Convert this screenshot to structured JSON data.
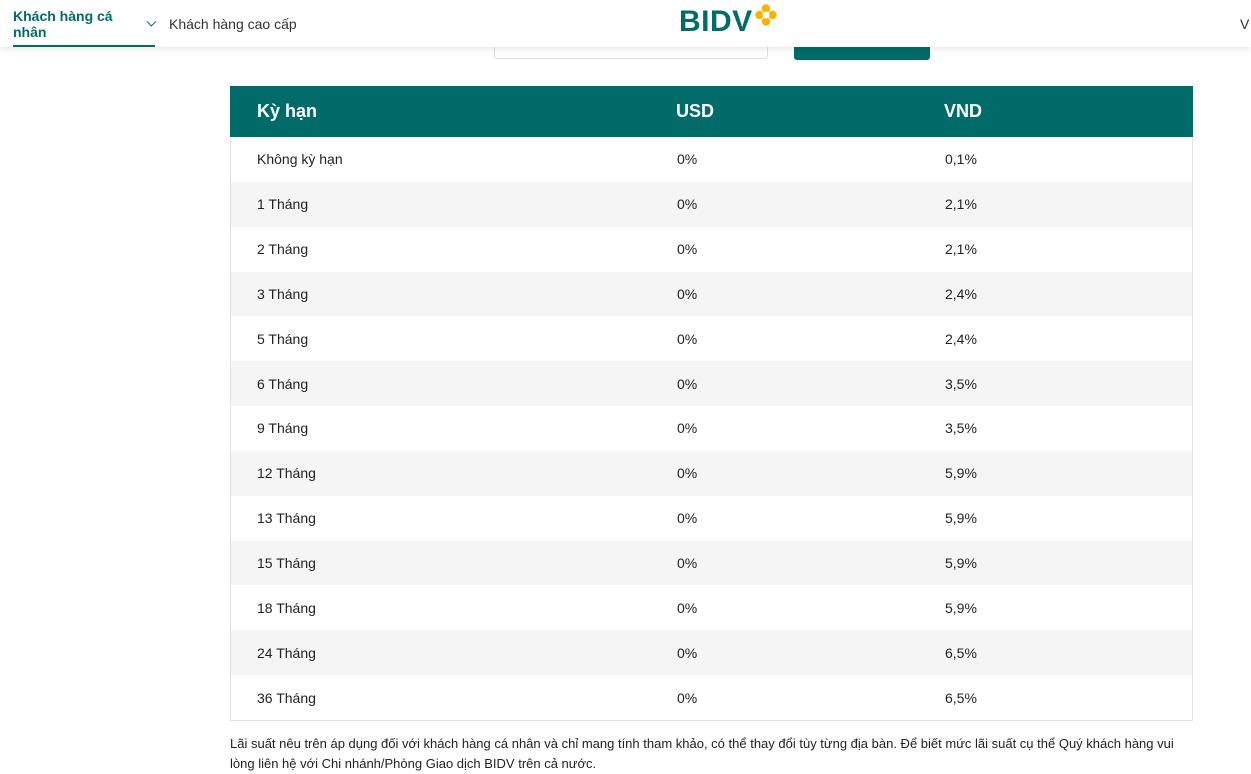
{
  "header": {
    "nav": [
      {
        "label": "Khách hàng cá nhân",
        "active": true
      },
      {
        "label": "Khách hàng cao cấp",
        "active": false
      }
    ],
    "logo_text": "BIDV",
    "lang_label": "V"
  },
  "colors": {
    "brand": "#006b68",
    "logo_accent": "#f5b400",
    "row_alt": "#f5f5f5"
  },
  "table": {
    "headers": [
      "Kỳ hạn",
      "USD",
      "VND"
    ],
    "rows": [
      {
        "term": "Không kỳ hạn",
        "usd": "0%",
        "vnd": "0,1%"
      },
      {
        "term": "1 Tháng",
        "usd": "0%",
        "vnd": "2,1%"
      },
      {
        "term": "2 Tháng",
        "usd": "0%",
        "vnd": "2,1%"
      },
      {
        "term": "3 Tháng",
        "usd": "0%",
        "vnd": "2,4%"
      },
      {
        "term": "5 Tháng",
        "usd": "0%",
        "vnd": "2,4%"
      },
      {
        "term": "6 Tháng",
        "usd": "0%",
        "vnd": "3,5%"
      },
      {
        "term": "9 Tháng",
        "usd": "0%",
        "vnd": "3,5%"
      },
      {
        "term": "12 Tháng",
        "usd": "0%",
        "vnd": "5,9%"
      },
      {
        "term": "13 Tháng",
        "usd": "0%",
        "vnd": "5,9%"
      },
      {
        "term": "15 Tháng",
        "usd": "0%",
        "vnd": "5,9%"
      },
      {
        "term": "18 Tháng",
        "usd": "0%",
        "vnd": "5,9%"
      },
      {
        "term": "24 Tháng",
        "usd": "0%",
        "vnd": "6,5%"
      },
      {
        "term": "36 Tháng",
        "usd": "0%",
        "vnd": "6,5%"
      }
    ]
  },
  "note": "Lãi suất nêu trên áp dụng đối với khách hàng cá nhân và chỉ mang tính tham khảo, có thể thay đổi tùy từng địa bàn. Để biết mức lãi suất cụ thể Quý khách hàng vui lòng liên hệ với Chi nhánh/Phòng Giao dịch BIDV trên cả nước."
}
